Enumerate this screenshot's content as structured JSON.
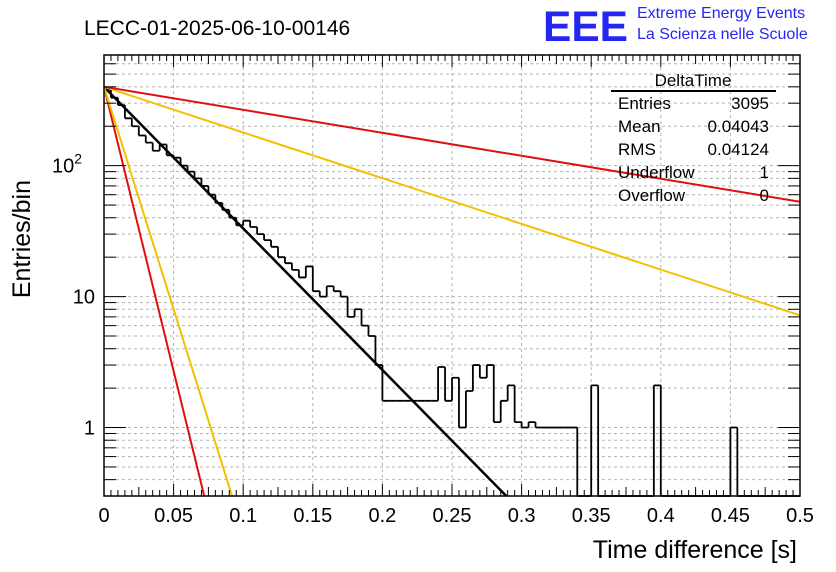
{
  "chart_data": {
    "type": "line",
    "title": "LECC-01-2025-06-10-00146",
    "xlabel": "Time difference [s]",
    "ylabel": "Entries/bin",
    "xlim": [
      0,
      0.5
    ],
    "ylim": [
      0.3,
      700
    ],
    "yscale": "log",
    "grid": true,
    "x_ticks": [
      "0",
      "0.05",
      "0.1",
      "0.15",
      "0.2",
      "0.25",
      "0.3",
      "0.35",
      "0.4",
      "0.45",
      "0.5"
    ],
    "y_ticks": [
      {
        "value": 1,
        "base": "1",
        "exp": ""
      },
      {
        "value": 10,
        "base": "10",
        "exp": ""
      },
      {
        "value": 100,
        "base": "10",
        "exp": "2"
      }
    ],
    "histogram": {
      "bin_width": 0.005,
      "color": "#000000",
      "counts": [
        380,
        330,
        290,
        230,
        200,
        170,
        150,
        130,
        145,
        120,
        115,
        100,
        90,
        80,
        70,
        60,
        52,
        46,
        40,
        35,
        38,
        34,
        30,
        27,
        24,
        20,
        18,
        16,
        14,
        17,
        11,
        10,
        12,
        11,
        10,
        7,
        8,
        6,
        5,
        3,
        1.6,
        1.6,
        1.6,
        1.6,
        1.6,
        1.6,
        1.6,
        1.6,
        2.9,
        1.6,
        2.4,
        1,
        1.9,
        3,
        2.4,
        3,
        1.1,
        1.6,
        2.1,
        1.1,
        1,
        1.1,
        1,
        1,
        1,
        1,
        1,
        1,
        0.12,
        0.12,
        2.1,
        0.12,
        0.12,
        0.12,
        0.12,
        0.12,
        0.12,
        0.12,
        0.12,
        2.1,
        0.12,
        0.12,
        0.12,
        0.12,
        0.12,
        0.12,
        0.12,
        0.12,
        0.12,
        0.12,
        1,
        0.12,
        0.12,
        0.12,
        0.12,
        0.12,
        0.12,
        0.12,
        0.12,
        0.12
      ]
    },
    "series": [
      {
        "color": "#000000",
        "width": 2.5,
        "x": [
          0,
          0.289
        ],
        "y": [
          400,
          0.3
        ]
      },
      {
        "color": "#dd1010",
        "width": 2,
        "x": [
          0,
          0.072
        ],
        "y": [
          400,
          0.3
        ]
      },
      {
        "color": "#f2c000",
        "width": 2,
        "x": [
          0,
          0.092
        ],
        "y": [
          400,
          0.3
        ]
      },
      {
        "color": "#f2c000",
        "width": 2,
        "x": [
          0,
          0.5
        ],
        "y": [
          400,
          7.2
        ]
      },
      {
        "color": "#dd1010",
        "width": 2,
        "x": [
          0,
          0.5
        ],
        "y": [
          400,
          53
        ]
      }
    ],
    "stats": {
      "name": "DeltaTime",
      "rows": [
        {
          "label": "Entries",
          "value": "3095"
        },
        {
          "label": "Mean",
          "value": "0.04043"
        },
        {
          "label": "RMS",
          "value": "0.04124"
        },
        {
          "label": "Underflow",
          "value": "1"
        },
        {
          "label": "Overflow",
          "value": "0"
        }
      ]
    }
  },
  "logo": {
    "mark": "EEE",
    "line1": "Extreme Energy Events",
    "line2": "La Scienza nelle Scuole",
    "color": "#2626f2"
  }
}
